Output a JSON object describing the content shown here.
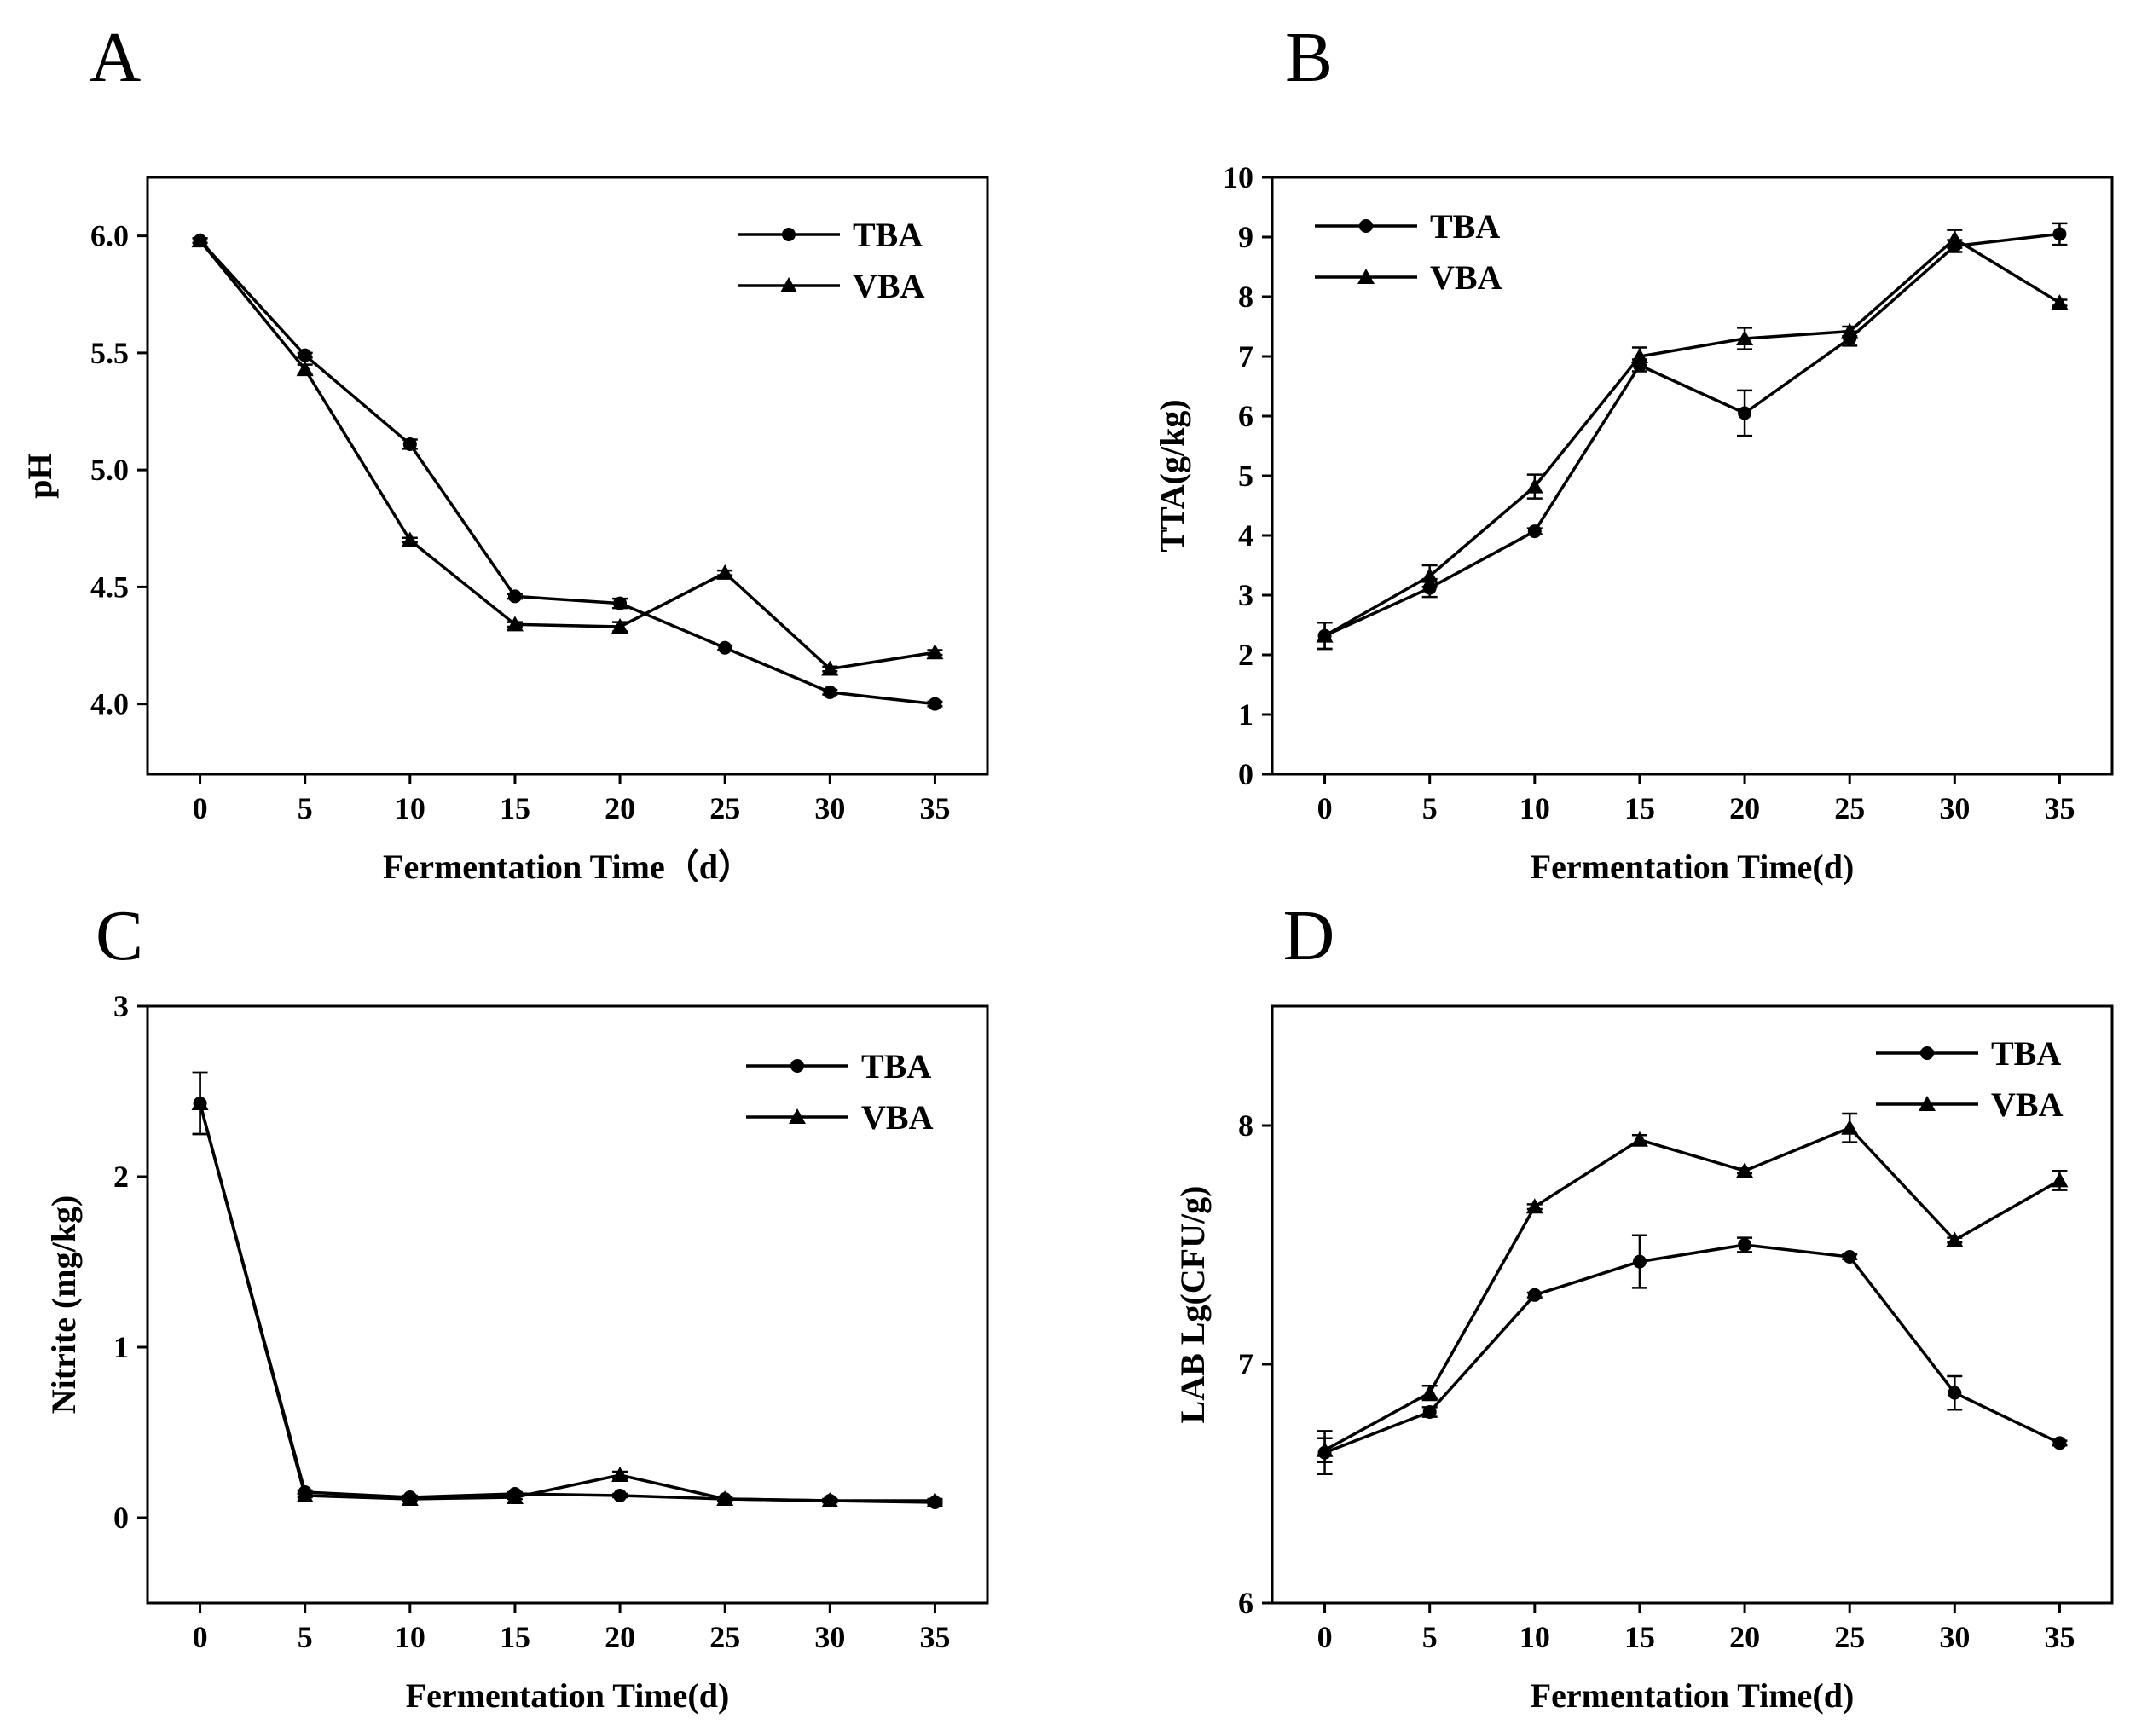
{
  "chart_data": [
    {
      "panel": "A",
      "type": "line",
      "xlabel": "Fermentation Time（d）",
      "ylabel": "pH",
      "x": [
        0,
        5,
        10,
        15,
        20,
        25,
        30,
        35
      ],
      "xlim": [
        -2.5,
        37.5
      ],
      "ylim": [
        3.7,
        6.25
      ],
      "xticks": [
        0,
        5,
        10,
        15,
        20,
        25,
        30,
        35
      ],
      "yticks": [
        4.0,
        4.5,
        5.0,
        5.5,
        6.0
      ],
      "ytick_decimals": 1,
      "legend": "top-right",
      "series": [
        {
          "name": "TBA",
          "marker": "circle",
          "values": [
            5.98,
            5.49,
            5.11,
            4.46,
            4.43,
            4.24,
            4.05,
            4.0
          ],
          "errors": [
            0.01,
            0.01,
            0.02,
            0.01,
            0.02,
            0.01,
            0.01,
            0.01
          ]
        },
        {
          "name": "VBA",
          "marker": "triangle",
          "values": [
            5.98,
            5.43,
            4.7,
            4.34,
            4.33,
            4.56,
            4.15,
            4.22
          ],
          "errors": [
            0.01,
            0.02,
            0.01,
            0.01,
            0.02,
            0.01,
            0.01,
            0.01
          ]
        }
      ]
    },
    {
      "panel": "B",
      "type": "line",
      "xlabel": "Fermentation Time(d)",
      "ylabel": "TTA(g/kg)",
      "x": [
        0,
        5,
        10,
        15,
        20,
        25,
        30,
        35
      ],
      "xlim": [
        -2.5,
        37.5
      ],
      "ylim": [
        0,
        10
      ],
      "xticks": [
        0,
        5,
        10,
        15,
        20,
        25,
        30,
        35
      ],
      "yticks": [
        0,
        1,
        2,
        3,
        4,
        5,
        6,
        7,
        8,
        9,
        10
      ],
      "ytick_decimals": 0,
      "legend": "top-left",
      "series": [
        {
          "name": "TBA",
          "marker": "circle",
          "values": [
            2.32,
            3.12,
            4.07,
            6.85,
            6.05,
            7.3,
            8.85,
            9.05
          ],
          "errors": [
            0.22,
            0.15,
            0.05,
            0.1,
            0.38,
            0.12,
            0.1,
            0.18
          ]
        },
        {
          "name": "VBA",
          "marker": "triangle",
          "values": [
            2.32,
            3.32,
            4.82,
            7.0,
            7.3,
            7.42,
            8.97,
            7.9
          ],
          "errors": [
            0.22,
            0.18,
            0.2,
            0.15,
            0.18,
            0.08,
            0.15,
            0.05
          ]
        }
      ]
    },
    {
      "panel": "C",
      "type": "line",
      "xlabel": "Fermentation Time(d)",
      "ylabel": "Nitrite (mg/kg)",
      "x": [
        0,
        5,
        10,
        15,
        20,
        25,
        30,
        35
      ],
      "xlim": [
        -2.5,
        37.5
      ],
      "ylim": [
        -0.5,
        3
      ],
      "xticks": [
        0,
        5,
        10,
        15,
        20,
        25,
        30,
        35
      ],
      "yticks": [
        0,
        1,
        2,
        3
      ],
      "ytick_decimals": 0,
      "legend": "top-right",
      "series": [
        {
          "name": "TBA",
          "marker": "circle",
          "values": [
            2.43,
            0.15,
            0.12,
            0.14,
            0.13,
            0.11,
            0.1,
            0.09
          ],
          "errors": [
            0.18,
            0.01,
            0.01,
            0.01,
            0.01,
            0.01,
            0.01,
            0.01
          ]
        },
        {
          "name": "VBA",
          "marker": "triangle",
          "values": [
            2.43,
            0.13,
            0.11,
            0.12,
            0.25,
            0.11,
            0.1,
            0.1
          ],
          "errors": [
            0.18,
            0.01,
            0.01,
            0.01,
            0.02,
            0.01,
            0.01,
            0.01
          ]
        }
      ]
    },
    {
      "panel": "D",
      "type": "line",
      "xlabel": "Fermentation Time(d)",
      "ylabel": "LAB Lg(CFU/g)",
      "x": [
        0,
        5,
        10,
        15,
        20,
        25,
        30,
        35
      ],
      "xlim": [
        -2.5,
        37.5
      ],
      "ylim": [
        6,
        8.5
      ],
      "xticks": [
        0,
        5,
        10,
        15,
        20,
        25,
        30,
        35
      ],
      "yticks": [
        6,
        7,
        8
      ],
      "ytick_decimals": 0,
      "legend": "top-right",
      "series": [
        {
          "name": "TBA",
          "marker": "circle",
          "values": [
            6.63,
            6.8,
            7.29,
            7.43,
            7.5,
            7.45,
            6.88,
            6.67
          ],
          "errors": [
            0.09,
            0.02,
            0.01,
            0.11,
            0.03,
            0.01,
            0.07,
            0.01
          ]
        },
        {
          "name": "VBA",
          "marker": "triangle",
          "values": [
            6.64,
            6.88,
            7.66,
            7.94,
            7.81,
            7.99,
            7.52,
            7.77
          ],
          "errors": [
            0.05,
            0.03,
            0.01,
            0.02,
            0.01,
            0.06,
            0.01,
            0.04
          ]
        }
      ]
    }
  ]
}
